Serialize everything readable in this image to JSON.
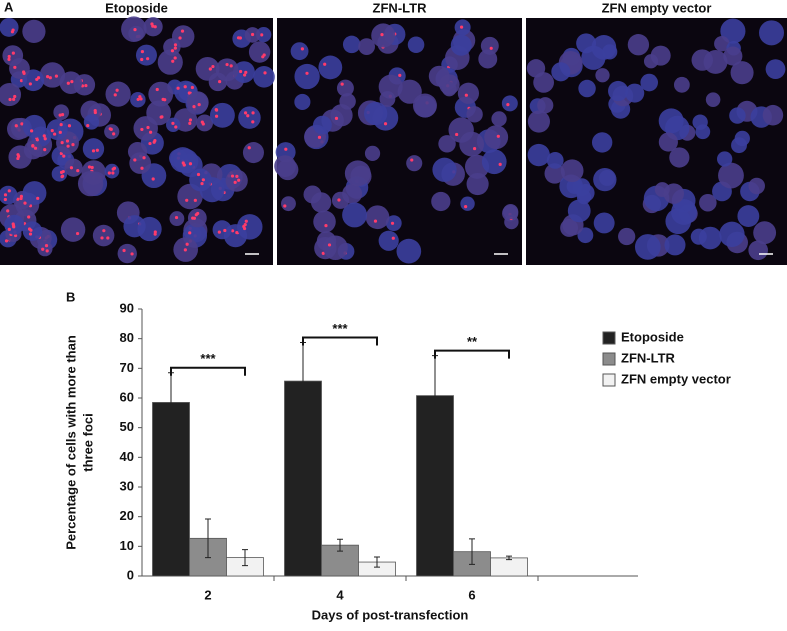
{
  "panel_labels": [
    "A",
    "B"
  ],
  "images": [
    {
      "title": "Etoposide"
    },
    {
      "title": "ZFN-LTR"
    },
    {
      "title": "ZFN empty vector"
    }
  ],
  "chart_data": {
    "type": "bar",
    "ylabel": [
      "Percentage of cells with more than",
      "three foci"
    ],
    "xlabel": "Days of  post-transfection",
    "categories": [
      "2",
      "4",
      "6"
    ],
    "series": [
      {
        "name": "Etoposide",
        "color": "#222222",
        "values": [
          58.5,
          65.7,
          60.8
        ],
        "errors": [
          10,
          13,
          13.5
        ]
      },
      {
        "name": "ZFN-LTR",
        "color": "#8c8c8c",
        "values": [
          12.7,
          10.4,
          8.2
        ],
        "errors": [
          6.5,
          2,
          4.3
        ]
      },
      {
        "name": "ZFN empty vector",
        "color": "#f2f2f2",
        "values": [
          6.2,
          4.7,
          6.1
        ],
        "errors": [
          2.7,
          1.7,
          0.6
        ]
      }
    ],
    "significance": [
      "***",
      "***",
      "**"
    ],
    "ylim": [
      0,
      90
    ],
    "yticks": [
      0,
      10,
      20,
      30,
      40,
      50,
      60,
      70,
      80,
      90
    ],
    "grid": false,
    "legend": "right"
  }
}
